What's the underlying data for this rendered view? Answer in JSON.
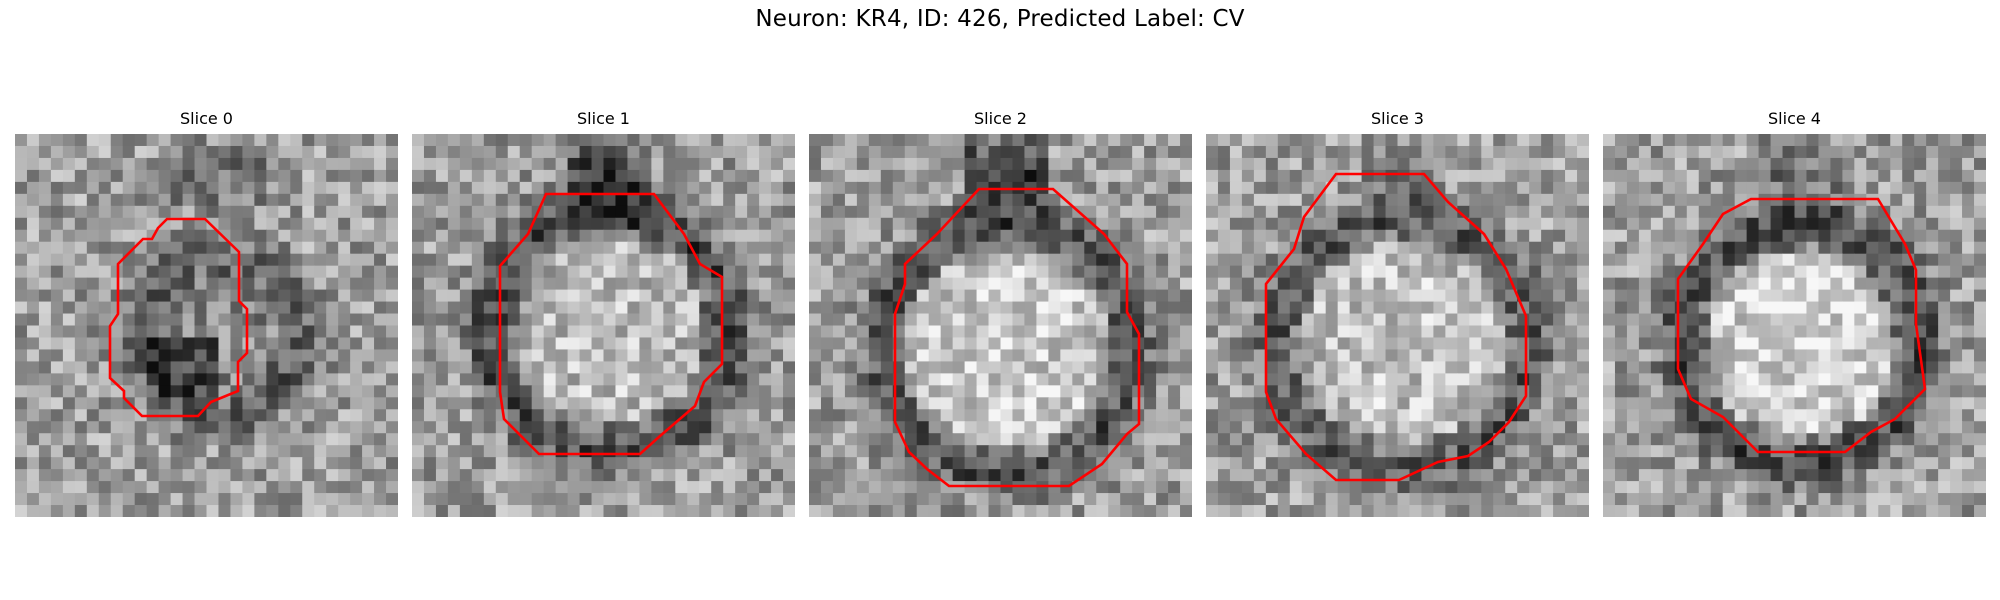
{
  "figure": {
    "title": "Neuron: KR4, ID: 426, Predicted Label: CV"
  },
  "panels": [
    {
      "title": "Slice 0",
      "outline_color": "#ff0000"
    },
    {
      "title": "Slice 1",
      "outline_color": "#ff0000"
    },
    {
      "title": "Slice 2",
      "outline_color": "#ff0000"
    },
    {
      "title": "Slice 3",
      "outline_color": "#ff0000"
    },
    {
      "title": "Slice 4",
      "outline_color": "#ff0000"
    }
  ]
}
